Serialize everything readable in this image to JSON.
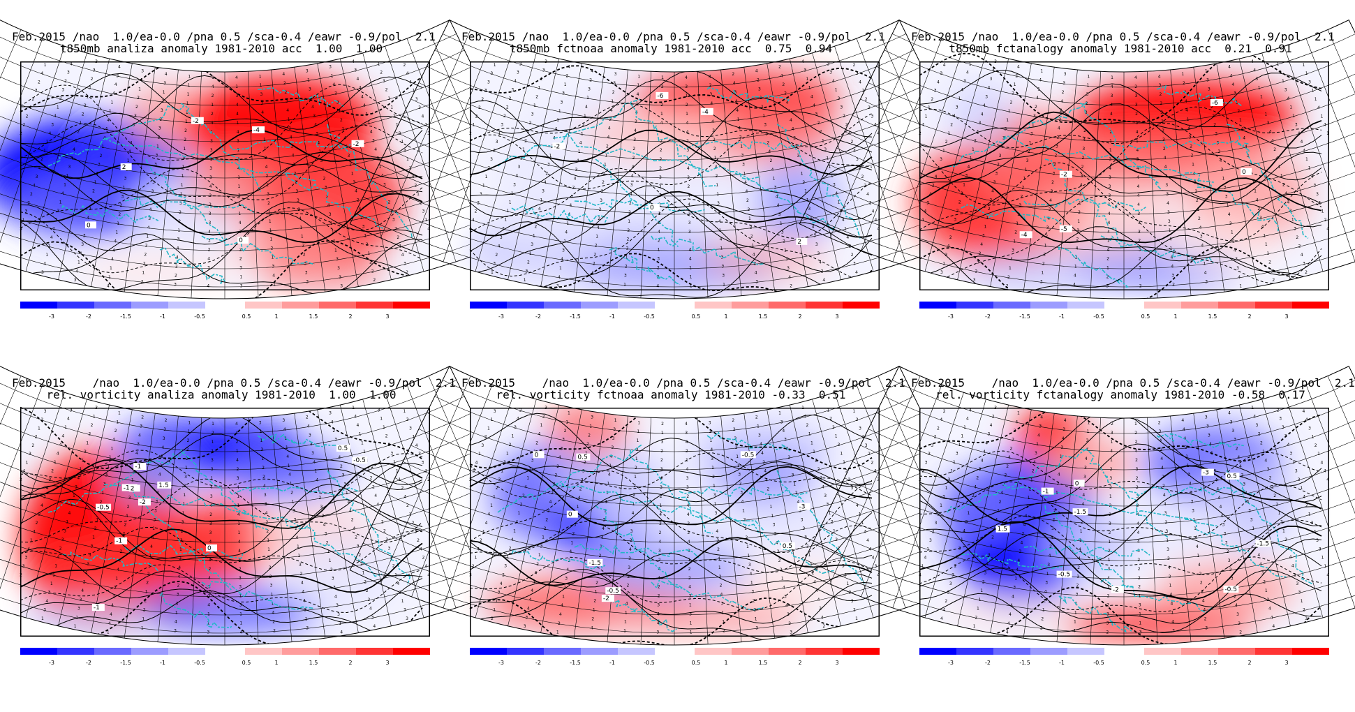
{
  "panels": [
    {
      "title1": "Feb.2015 /nao  1.0/ea-0.0 /pna 0.5 /sca-0.4 /eawr -0.9/pol  2.1",
      "title2": "t850mb analiza anomaly 1981-2010 acc  1.00  1.00",
      "contour_labels": [
        "-4",
        "-2",
        "0",
        "0",
        "-2",
        "2"
      ]
    },
    {
      "title1": "Feb.2015 /nao  1.0/ea-0.0 /pna 0.5 /sca-0.4 /eawr -0.9/pol  2.1",
      "title2": "t850mb fctnoaa anomaly 1981-2010 acc  0.75  0.94",
      "contour_labels": [
        "-6",
        "-4",
        "-2",
        "0",
        "2"
      ]
    },
    {
      "title1": "Feb.2015 /nao  1.0/ea-0.0 /pna 0.5 /sca-0.4 /eawr -0.9/pol  2.1",
      "title2": "t850mb fctanalogy anomaly 1981-2010 acc  0.21  0.91",
      "contour_labels": [
        "-5",
        "-6",
        "-4",
        "-2",
        "0"
      ]
    },
    {
      "title1": "Feb.2015    /nao  1.0/ea-0.0 /pna 0.5 /sca-0.4 /eawr -0.9/pol  2.1",
      "title2": "rel. vorticity analiza anomaly 1981-2010  1.00  1.00",
      "contour_labels": [
        "-1",
        "-1",
        "-2",
        "-1.5",
        "0.5",
        "-1",
        "-0.5",
        "0",
        "1.5",
        "2",
        "-0.5"
      ]
    },
    {
      "title1": "Feb.2015    /nao  1.0/ea-0.0 /pna 0.5 /sca-0.4 /eawr -0.9/pol  2.1",
      "title2": "rel. vorticity fctnoaa anomaly 1981-2010 -0.33  0.51",
      "contour_labels": [
        "-3",
        "-2",
        "-0.5",
        "0",
        "0.5",
        "-1.5",
        "0.5",
        "-0.5",
        "0"
      ]
    },
    {
      "title1": "Feb.2015    /nao  1.0/ea-0.0 /pna 0.5 /sca-0.4 /eawr -0.9/pol  2.1",
      "title2": "rel. vorticity fctanalogy anomaly 1981-2010 -0.58  0.17",
      "contour_labels": [
        "-3",
        "-2",
        "-1.5",
        "-0.5",
        "0.5",
        "-1",
        "-0.5",
        "1.5",
        "-1.5",
        "0"
      ]
    }
  ],
  "colorbar": {
    "labels": [
      "-3",
      "-2",
      "-1.5",
      "-1",
      "-0.5",
      "0.5",
      "1",
      "1.5",
      "2",
      "3"
    ],
    "colors": [
      "#0000ff",
      "#3434ff",
      "#6a6aff",
      "#9c9cff",
      "#c6c6ff",
      "#e6e6ff",
      "#ffe6e6",
      "#ffc6c6",
      "#ff9c9c",
      "#ff6a6a",
      "#ff3434",
      "#ff0000"
    ]
  },
  "colors": {
    "coastline": "#22b7c6",
    "contour": "#000000"
  }
}
